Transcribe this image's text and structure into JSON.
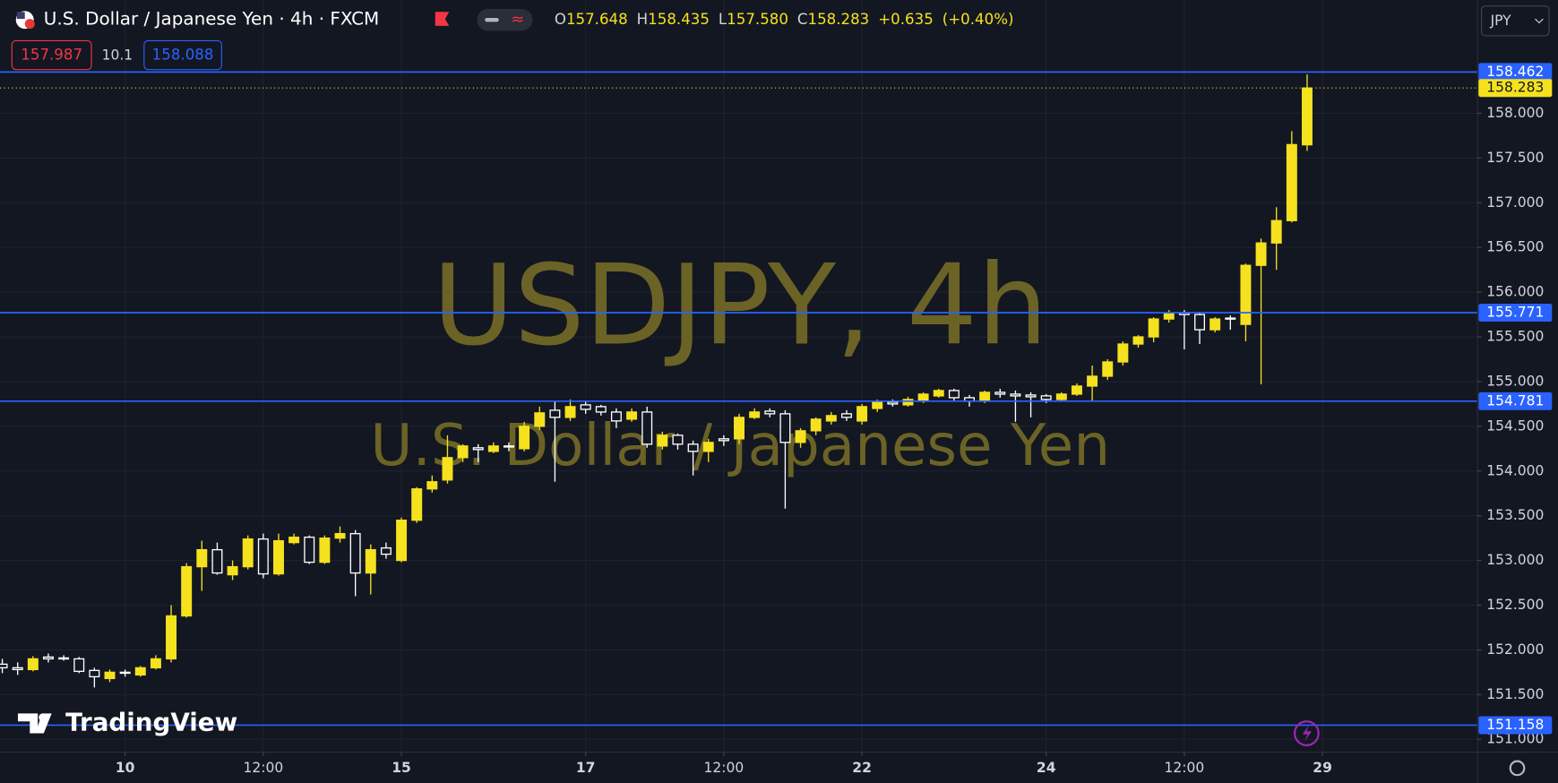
{
  "chart_data": {
    "type": "candlestick",
    "title": "U.S. Dollar / Japanese Yen · 4h · FXCM",
    "legend": [
      {
        "key": "O",
        "value": "157.648"
      },
      {
        "key": "H",
        "value": "158.435"
      },
      {
        "key": "L",
        "value": "157.580"
      },
      {
        "key": "C",
        "value": "158.283"
      },
      {
        "key": "",
        "value": "+0.635"
      },
      {
        "key": "",
        "value": "(+0.40%)"
      }
    ],
    "bid": "157.987",
    "spread": "10.1",
    "ask": "158.088",
    "currency": "JPY",
    "watermark_symbol": "USDJPY, 4h",
    "watermark_name": "U.S. Dollar / Japanese Yen",
    "brand": "TradingView",
    "up_color": "#f5e11e",
    "down_color": "#ffffff",
    "line_color": "#2962ff",
    "grid": true,
    "open": [
      151.84,
      151.8,
      151.78,
      151.92,
      151.91,
      151.9,
      151.77,
      151.68,
      151.75,
      151.72,
      151.8,
      151.9,
      152.38,
      152.93,
      153.12,
      152.84,
      152.93,
      153.24,
      152.85,
      153.2,
      153.26,
      152.98,
      153.25,
      153.3,
      152.86,
      153.14,
      153.0,
      153.45,
      153.8,
      153.9,
      154.15,
      154.26,
      154.22,
      154.28,
      154.25,
      154.5,
      154.68,
      154.6,
      154.74,
      154.72,
      154.66,
      154.58,
      154.66,
      154.28,
      154.4,
      154.3,
      154.22,
      154.36,
      154.36,
      154.6,
      154.67,
      154.64,
      154.32,
      154.45,
      154.56,
      154.64,
      154.56,
      154.7,
      154.77,
      154.74,
      154.78,
      154.84,
      154.9,
      154.82,
      154.78,
      154.88,
      154.86,
      154.85,
      154.84,
      154.8,
      154.86,
      154.95,
      155.06,
      155.22,
      155.42,
      155.5,
      155.7,
      155.77,
      155.75,
      155.58,
      155.71,
      155.64,
      156.3,
      156.55,
      156.8,
      157.648
    ],
    "high": [
      151.9,
      151.86,
      151.93,
      151.96,
      151.94,
      151.92,
      151.8,
      151.78,
      151.78,
      151.82,
      151.94,
      152.5,
      152.97,
      153.22,
      153.2,
      153.0,
      153.28,
      153.3,
      153.3,
      153.3,
      153.28,
      153.28,
      153.38,
      153.34,
      153.18,
      153.2,
      153.48,
      153.82,
      153.95,
      154.4,
      154.3,
      154.3,
      154.32,
      154.32,
      154.55,
      154.72,
      154.78,
      154.8,
      154.78,
      154.74,
      154.7,
      154.7,
      154.72,
      154.44,
      154.42,
      154.34,
      154.36,
      154.4,
      154.64,
      154.7,
      154.7,
      154.68,
      154.48,
      154.6,
      154.66,
      154.68,
      154.75,
      154.8,
      154.8,
      154.83,
      154.88,
      154.92,
      154.92,
      154.85,
      154.9,
      154.92,
      154.9,
      154.88,
      154.86,
      154.88,
      154.98,
      155.18,
      155.25,
      155.45,
      155.52,
      155.72,
      155.8,
      155.8,
      155.78,
      155.72,
      155.74,
      156.32,
      156.6,
      156.95,
      157.8,
      158.435
    ],
    "low": [
      151.74,
      151.72,
      151.76,
      151.86,
      151.88,
      151.74,
      151.58,
      151.64,
      151.7,
      151.7,
      151.78,
      151.86,
      152.36,
      152.66,
      152.84,
      152.78,
      152.9,
      152.8,
      152.83,
      153.18,
      152.96,
      152.96,
      153.2,
      152.6,
      152.62,
      153.02,
      152.98,
      153.42,
      153.76,
      153.86,
      154.1,
      154.1,
      154.2,
      154.22,
      154.22,
      154.46,
      153.88,
      154.56,
      154.64,
      154.62,
      154.48,
      154.55,
      154.26,
      154.24,
      154.24,
      153.95,
      154.1,
      154.28,
      154.3,
      154.58,
      154.6,
      153.58,
      154.26,
      154.4,
      154.52,
      154.56,
      154.52,
      154.66,
      154.72,
      154.72,
      154.76,
      154.82,
      154.78,
      154.72,
      154.76,
      154.82,
      154.55,
      154.6,
      154.76,
      154.78,
      154.84,
      154.78,
      155.02,
      155.18,
      155.38,
      155.44,
      155.66,
      155.36,
      155.42,
      155.55,
      155.58,
      155.45,
      154.97,
      156.25,
      156.78,
      157.58
    ],
    "close": [
      151.8,
      151.78,
      151.9,
      151.9,
      151.9,
      151.76,
      151.7,
      151.75,
      151.74,
      151.8,
      151.9,
      152.38,
      152.93,
      153.12,
      152.86,
      152.93,
      153.24,
      152.85,
      153.22,
      153.26,
      152.98,
      153.25,
      153.3,
      152.86,
      153.12,
      153.07,
      153.45,
      153.8,
      153.88,
      154.15,
      154.28,
      154.24,
      154.28,
      154.27,
      154.5,
      154.65,
      154.6,
      154.72,
      154.69,
      154.66,
      154.56,
      154.66,
      154.3,
      154.4,
      154.3,
      154.22,
      154.32,
      154.34,
      154.6,
      154.66,
      154.64,
      154.32,
      154.45,
      154.58,
      154.62,
      154.6,
      154.72,
      154.77,
      154.75,
      154.8,
      154.86,
      154.9,
      154.82,
      154.78,
      154.88,
      154.86,
      154.84,
      154.83,
      154.8,
      154.86,
      154.95,
      155.06,
      155.22,
      155.42,
      155.5,
      155.7,
      155.76,
      155.75,
      155.58,
      155.7,
      155.7,
      156.3,
      156.55,
      156.8,
      157.65,
      158.283
    ],
    "hlines": [
      158.462,
      155.771,
      154.781,
      151.158
    ],
    "last_price": 158.283,
    "ylim": [
      150.856,
      159.267
    ],
    "yticks": [
      {
        "value": 151,
        "label": "151.000"
      },
      {
        "value": 151.5,
        "label": "151.500"
      },
      {
        "value": 152,
        "label": "152.000"
      },
      {
        "value": 152.5,
        "label": "152.500"
      },
      {
        "value": 153,
        "label": "153.000"
      },
      {
        "value": 153.5,
        "label": "153.500"
      },
      {
        "value": 154,
        "label": "154.000"
      },
      {
        "value": 154.5,
        "label": "154.500"
      },
      {
        "value": 155,
        "label": "155.000"
      },
      {
        "value": 155.5,
        "label": "155.500"
      },
      {
        "value": 156,
        "label": "156.000"
      },
      {
        "value": 156.5,
        "label": "156.500"
      },
      {
        "value": 157,
        "label": "157.000"
      },
      {
        "value": 157.5,
        "label": "157.500"
      },
      {
        "value": 158,
        "label": "158.000"
      }
    ],
    "xlim": [
      -0.15,
      96.1
    ],
    "xticks": [
      {
        "value": 8,
        "label": "10"
      },
      {
        "value": 17,
        "label": "12:00"
      },
      {
        "value": 26,
        "label": "15"
      },
      {
        "value": 38,
        "label": "17"
      },
      {
        "value": 47,
        "label": "12:00"
      },
      {
        "value": 56,
        "label": "22"
      },
      {
        "value": 68,
        "label": "24"
      },
      {
        "value": 77,
        "label": "12:00"
      },
      {
        "value": 86,
        "label": "29"
      }
    ]
  }
}
